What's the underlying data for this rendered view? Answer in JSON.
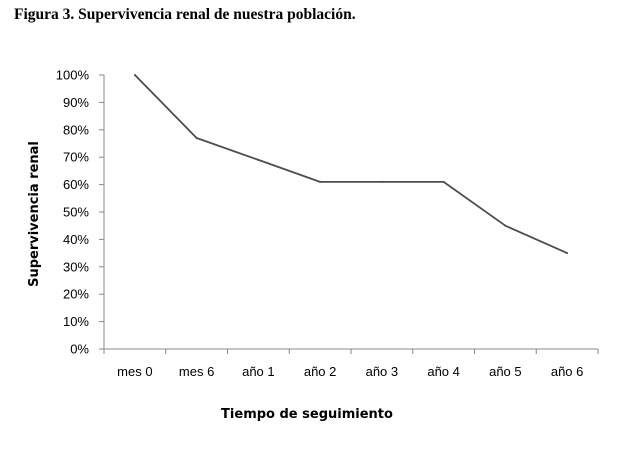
{
  "figure": {
    "caption": "Figura 3. Supervivencia renal de nuestra población."
  },
  "chart_data": {
    "type": "line",
    "title": "",
    "xlabel": "Tiempo de seguimiento",
    "ylabel": "Supervivencia renal",
    "categories": [
      "mes 0",
      "mes 6",
      "año 1",
      "año 2",
      "año 3",
      "año 4",
      "año 5",
      "año 6"
    ],
    "series": [
      {
        "values": [
          100,
          77,
          69,
          61,
          61,
          61,
          45,
          35
        ]
      }
    ],
    "ylim": [
      0,
      100
    ],
    "yticks": [
      "0%",
      "10%",
      "20%",
      "30%",
      "40%",
      "50%",
      "60%",
      "70%",
      "80%",
      "90%",
      "100%"
    ],
    "grid": false,
    "legend": "none",
    "line_color": "#4d4d4d"
  }
}
